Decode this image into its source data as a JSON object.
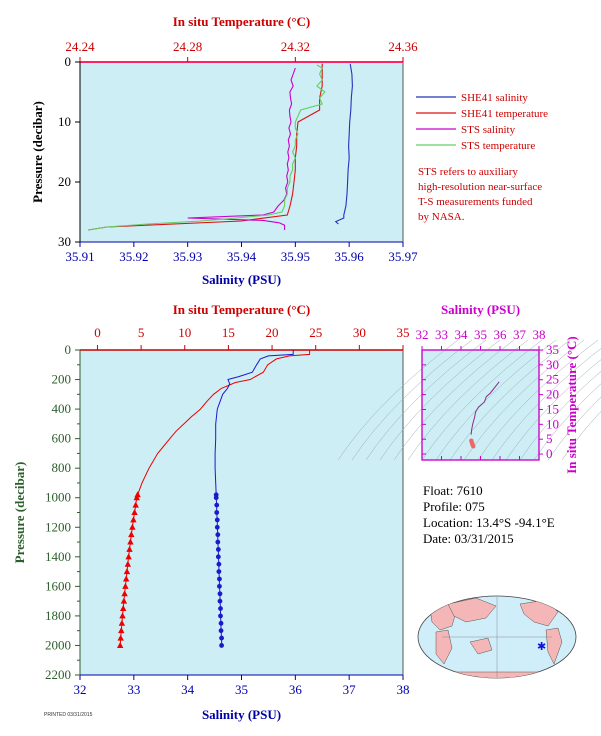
{
  "chart_data": [
    {
      "id": "upper",
      "type": "line",
      "title": "",
      "top_axis": {
        "label": "In situ Temperature (°C)",
        "range": [
          24.24,
          24.36
        ],
        "ticks": [
          "24.24",
          "24.28",
          "24.32",
          "24.36"
        ],
        "tick_values": [
          24.24,
          24.28,
          24.32,
          24.36
        ],
        "color": "#cc0000"
      },
      "bottom_axis": {
        "label": "Salinity (PSU)",
        "range": [
          35.91,
          35.97
        ],
        "ticks": [
          "35.91",
          "35.92",
          "35.93",
          "35.94",
          "35.95",
          "35.96",
          "35.97"
        ],
        "tick_values": [
          35.91,
          35.92,
          35.93,
          35.94,
          35.95,
          35.96,
          35.97
        ],
        "color": "#0000aa"
      },
      "left_axis": {
        "label": "Pressure (decibar)",
        "range": [
          0,
          30
        ],
        "ticks": [
          "0",
          "10",
          "20",
          "30"
        ],
        "tick_values": [
          0,
          10,
          20,
          30
        ],
        "inverted": true,
        "color": "#000000"
      },
      "series": [
        {
          "name": "SHE41 salinity",
          "color": "#2233bb",
          "p": [
            0.3,
            2,
            4,
            6,
            8,
            10,
            12,
            14,
            16,
            18,
            20,
            22,
            24,
            25.5,
            26,
            26.6,
            27
          ],
          "x": [
            35.9602,
            35.9605,
            35.9606,
            35.9604,
            35.9603,
            35.9601,
            35.96,
            35.9599,
            35.96,
            35.9598,
            35.9597,
            35.9596,
            35.9594,
            35.959,
            35.959,
            35.9575,
            35.958
          ]
        },
        {
          "name": "SHE41 temperature",
          "color": "#dd1111",
          "p": [
            0.3,
            2,
            4,
            6,
            8,
            10,
            12,
            14,
            16,
            18,
            20,
            22,
            24,
            25.5,
            26.5,
            27.5,
            28
          ],
          "x": [
            24.33,
            24.33,
            24.33,
            24.329,
            24.329,
            24.321,
            24.3205,
            24.3205,
            24.32,
            24.32,
            24.3195,
            24.319,
            24.318,
            24.317,
            24.3,
            24.25,
            24.243
          ]
        },
        {
          "name": "STS salinity",
          "color": "#cc00cc",
          "p": [
            1,
            2,
            3,
            4,
            5,
            6,
            7,
            8,
            9,
            10,
            11,
            12,
            13,
            14,
            15,
            16,
            17,
            18,
            19,
            20,
            21,
            22,
            23,
            24,
            25,
            25.5,
            26,
            26.4,
            26.8,
            27.2,
            27.6,
            28
          ],
          "x": [
            35.95,
            35.9496,
            35.9492,
            35.9496,
            35.949,
            35.9491,
            35.9493,
            35.9489,
            35.949,
            35.9492,
            35.9488,
            35.9491,
            35.9487,
            35.9489,
            35.9486,
            35.9488,
            35.9485,
            35.9487,
            35.9484,
            35.9486,
            35.9482,
            35.9484,
            35.9479,
            35.9468,
            35.946,
            35.944,
            35.93,
            35.944,
            35.947,
            35.948,
            35.948,
            35.948
          ]
        },
        {
          "name": "STS temperature",
          "color": "#66cc66",
          "p": [
            0.5,
            1,
            2,
            3,
            4,
            5,
            6,
            7,
            8,
            9,
            10,
            11,
            12,
            13,
            14,
            15,
            16,
            17,
            18,
            19,
            20,
            21,
            22,
            23,
            24,
            25,
            25.5,
            26,
            26.5,
            27,
            27.5,
            28
          ],
          "x": [
            24.328,
            24.33,
            24.329,
            24.33,
            24.328,
            24.331,
            24.329,
            24.33,
            24.322,
            24.321,
            24.32,
            24.32,
            24.321,
            24.32,
            24.32,
            24.319,
            24.32,
            24.319,
            24.319,
            24.318,
            24.318,
            24.317,
            24.317,
            24.316,
            24.316,
            24.315,
            24.31,
            24.298,
            24.285,
            24.265,
            24.25,
            24.243
          ]
        }
      ],
      "legend_placement": "right",
      "note": "STS refers to auxiliary high-resolution near-surface T-S measurements funded by NASA."
    },
    {
      "id": "lower",
      "type": "line",
      "title": "",
      "top_axis": {
        "label": "In situ Temperature (°C)",
        "range": [
          -2,
          35
        ],
        "ticks": [
          "0",
          "5",
          "10",
          "15",
          "20",
          "25",
          "30",
          "35"
        ],
        "tick_values": [
          0,
          5,
          10,
          15,
          20,
          25,
          30,
          35
        ],
        "color": "#cc0000"
      },
      "bottom_axis": {
        "label": "Salinity (PSU)",
        "range": [
          32,
          38
        ],
        "ticks": [
          "32",
          "33",
          "34",
          "35",
          "36",
          "37",
          "38"
        ],
        "tick_values": [
          32,
          33,
          34,
          35,
          36,
          37,
          38
        ],
        "color": "#0000aa"
      },
      "left_axis": {
        "label": "Pressure (decibar)",
        "range": [
          0,
          2200
        ],
        "ticks": [
          "0",
          "200",
          "400",
          "600",
          "800",
          "1000",
          "1200",
          "1400",
          "1600",
          "1800",
          "2000",
          "2200"
        ],
        "tick_values": [
          0,
          200,
          400,
          600,
          800,
          1000,
          1200,
          1400,
          1600,
          1800,
          2000,
          2200
        ],
        "inverted": true,
        "color": "#2e5e2e"
      },
      "series": [
        {
          "name": "temperature",
          "color": "#ee0000",
          "marker": "triangle",
          "marker_from": 980,
          "p": [
            0,
            30,
            40,
            60,
            100,
            150,
            200,
            220,
            260,
            300,
            350,
            400,
            450,
            500,
            550,
            600,
            650,
            700,
            800,
            900,
            980,
            1000,
            1050,
            1100,
            1150,
            1200,
            1250,
            1300,
            1350,
            1400,
            1450,
            1500,
            1550,
            1600,
            1650,
            1700,
            1750,
            1800,
            1850,
            1900,
            1950,
            2000
          ],
          "x": [
            24.3,
            24.3,
            22,
            20.5,
            19.5,
            19,
            17.5,
            15.8,
            14.2,
            13.3,
            12.5,
            11.8,
            10.8,
            9.9,
            9.0,
            8.3,
            7.6,
            6.9,
            5.9,
            5.1,
            4.6,
            4.5,
            4.38,
            4.25,
            4.12,
            4.0,
            3.88,
            3.78,
            3.67,
            3.57,
            3.48,
            3.38,
            3.29,
            3.2,
            3.11,
            3.03,
            2.95,
            2.87,
            2.8,
            2.73,
            2.66,
            2.6
          ]
        },
        {
          "name": "salinity",
          "color": "#1a1acc",
          "marker": "circle",
          "marker_from": 980,
          "p": [
            0,
            30,
            40,
            60,
            100,
            150,
            180,
            200,
            230,
            260,
            300,
            400,
            500,
            600,
            700,
            800,
            900,
            980,
            1000,
            1050,
            1100,
            1150,
            1200,
            1250,
            1300,
            1350,
            1400,
            1450,
            1500,
            1550,
            1600,
            1650,
            1700,
            1750,
            1800,
            1850,
            1900,
            1950,
            2000
          ],
          "x": [
            35.96,
            35.96,
            35.5,
            35.35,
            35.28,
            35.2,
            34.95,
            34.75,
            34.78,
            34.74,
            34.65,
            34.55,
            34.52,
            34.52,
            34.51,
            34.51,
            34.52,
            34.53,
            34.53,
            34.54,
            34.54,
            34.55,
            34.55,
            34.56,
            34.56,
            34.57,
            34.57,
            34.58,
            34.58,
            34.59,
            34.59,
            34.6,
            34.6,
            34.61,
            34.61,
            34.62,
            34.62,
            34.63,
            34.63
          ]
        }
      ]
    },
    {
      "id": "ts",
      "type": "line",
      "title": "",
      "top_axis": {
        "label": "Salinity (PSU)",
        "range": [
          32,
          38
        ],
        "ticks": [
          "32",
          "33",
          "34",
          "35",
          "36",
          "37",
          "38"
        ],
        "tick_values": [
          32,
          33,
          34,
          35,
          36,
          37,
          38
        ],
        "color": "#cc00cc"
      },
      "right_axis": {
        "label": "In situ Temperature (°C)",
        "range": [
          -2,
          35
        ],
        "ticks": [
          "0",
          "5",
          "10",
          "15",
          "20",
          "25",
          "30",
          "35"
        ],
        "tick_values": [
          0,
          5,
          10,
          15,
          20,
          25,
          30,
          35
        ],
        "color": "#cc00cc"
      },
      "series": [
        {
          "name": "T-S",
          "color": "#8e2a8e",
          "x": [
            35.96,
            35.5,
            35.3,
            35.2,
            34.9,
            34.75,
            34.7,
            34.6,
            34.55,
            34.52
          ],
          "y": [
            24.3,
            20.5,
            19.3,
            17.5,
            15.8,
            14.2,
            12.5,
            10.0,
            8.3,
            6.5
          ]
        },
        {
          "name": "T-S deep",
          "color": "#ee6666",
          "x": [
            34.53,
            34.55,
            34.57,
            34.59,
            34.61,
            34.63
          ],
          "y": [
            4.5,
            4.0,
            3.6,
            3.2,
            2.9,
            2.6
          ]
        }
      ]
    }
  ],
  "legend": [
    {
      "label": "SHE41 salinity",
      "color": "#2233bb"
    },
    {
      "label": "SHE41 temperature",
      "color": "#dd1111"
    },
    {
      "label": "STS salinity",
      "color": "#cc00cc"
    },
    {
      "label": "STS temperature",
      "color": "#66cc66"
    }
  ],
  "note_lines": [
    "STS refers to auxiliary",
    "high-resolution near-surface",
    "T-S measurements funded",
    "by NASA."
  ],
  "float_info": {
    "float": "Float:  7610",
    "profile": "Profile:  075",
    "location": "Location:  13.4°S  -94.1°E",
    "date": "Date:  03/31/2015"
  },
  "footer_stamp": "PRINTED 03/31/2015",
  "colors": {
    "plot_bg": "#cdeef5",
    "temp_axis": "#cc0000",
    "sal_axis": "#0000aa",
    "ts_axis": "#cc00cc",
    "land": "#f4b6b6",
    "ocean": "#cfeef9"
  }
}
